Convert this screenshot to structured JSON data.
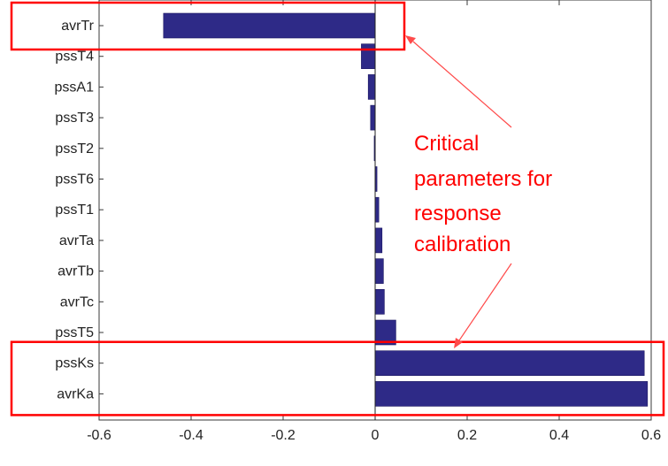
{
  "chart_data": {
    "type": "bar",
    "orientation": "horizontal",
    "categories": [
      "avrTr",
      "pssT4",
      "pssA1",
      "pssT3",
      "pssT2",
      "pssT6",
      "pssT1",
      "avrTa",
      "avrTb",
      "avrTc",
      "pssT5",
      "pssKs",
      "avrKa"
    ],
    "values": [
      -0.46,
      -0.03,
      -0.015,
      -0.01,
      -0.002,
      0.004,
      0.008,
      0.015,
      0.018,
      0.02,
      0.045,
      0.585,
      0.592
    ],
    "xlim": [
      -0.6,
      0.6
    ],
    "xticks": [
      -0.6,
      -0.4,
      -0.2,
      0,
      0.2,
      0.4,
      0.6
    ],
    "xtick_labels": [
      "-0.6",
      "-0.4",
      "-0.2",
      "0",
      "0.2",
      "0.4",
      "0.6"
    ],
    "title": "",
    "xlabel": "",
    "ylabel": "",
    "grid": false,
    "bar_color": "#2e2a87",
    "highlight_color": "#ff0000",
    "highlighted_categories": [
      "avrTr",
      "pssKs",
      "avrKa"
    ],
    "annotation": {
      "lines": [
        "Critical",
        "parameters for",
        "response",
        "calibration"
      ]
    }
  }
}
